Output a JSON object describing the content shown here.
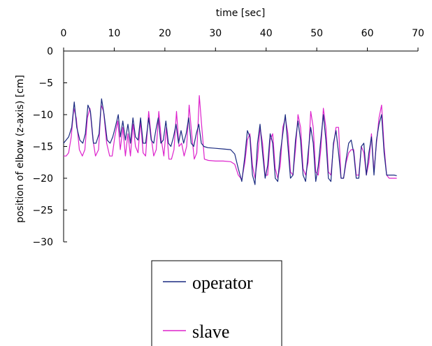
{
  "chart_data": {
    "type": "line",
    "xlabel": "time [sec]",
    "ylabel": "position of elbow (z-axis) [cm]",
    "xlim": [
      0,
      70
    ],
    "ylim": [
      -30,
      0
    ],
    "x_ticks": [
      0,
      10,
      20,
      30,
      40,
      50,
      60,
      70
    ],
    "y_ticks": [
      0,
      -5,
      -10,
      -15,
      -20,
      -25,
      -30
    ],
    "x_axis_position": "top",
    "grid": false,
    "legend": {
      "placement": "bottom-center"
    },
    "series": [
      {
        "name": "operator",
        "color": "#1a2a80",
        "x": [
          0,
          0.5,
          1.0,
          1.6,
          2.1,
          2.6,
          3.2,
          3.8,
          4.3,
          4.8,
          5.3,
          5.9,
          6.4,
          7.0,
          7.5,
          8.0,
          8.6,
          9.2,
          9.7,
          10.2,
          10.8,
          11.2,
          11.7,
          12.2,
          12.7,
          13.2,
          13.7,
          14.2,
          14.7,
          15.2,
          15.7,
          16.2,
          16.8,
          17.3,
          17.8,
          18.2,
          18.7,
          19.2,
          19.7,
          20.2,
          20.7,
          21.2,
          21.7,
          22.2,
          22.7,
          23.2,
          23.7,
          24.2,
          24.7,
          25.2,
          25.7,
          26.2,
          26.7,
          27.2,
          27.7,
          28.5,
          30.0,
          31.5,
          33.0,
          33.8,
          34.5,
          35.2,
          35.8,
          36.3,
          36.8,
          37.3,
          37.8,
          38.3,
          38.8,
          39.3,
          39.8,
          40.3,
          40.8,
          41.3,
          41.8,
          42.3,
          42.8,
          43.3,
          43.8,
          44.3,
          44.8,
          45.3,
          45.8,
          46.3,
          46.8,
          47.3,
          47.8,
          48.3,
          48.8,
          49.3,
          49.8,
          50.3,
          50.8,
          51.3,
          51.8,
          52.3,
          52.8,
          53.3,
          53.8,
          54.3,
          54.8,
          55.3,
          55.8,
          56.3,
          56.8,
          57.3,
          57.8,
          58.3,
          58.8,
          59.3,
          59.8,
          60.3,
          60.8,
          61.3,
          61.8,
          62.3,
          62.8,
          63.3,
          63.8,
          64.3,
          64.8,
          65.3,
          65.8
        ],
        "y": [
          -14.5,
          -14.0,
          -13.5,
          -12.0,
          -8.0,
          -12.0,
          -14.0,
          -14.5,
          -13.0,
          -8.5,
          -9.5,
          -14.5,
          -14.5,
          -13.0,
          -7.5,
          -10.0,
          -14.0,
          -14.5,
          -13.5,
          -12.0,
          -10.0,
          -13.5,
          -11.0,
          -14.0,
          -11.5,
          -14.5,
          -10.5,
          -13.5,
          -14.0,
          -10.5,
          -14.5,
          -14.5,
          -10.5,
          -14.0,
          -14.5,
          -12.5,
          -10.5,
          -14.5,
          -14.0,
          -11.0,
          -14.5,
          -15.0,
          -13.5,
          -11.5,
          -14.5,
          -12.5,
          -14.5,
          -13.0,
          -10.5,
          -14.5,
          -15.0,
          -13.0,
          -11.5,
          -14.5,
          -15.0,
          -15.2,
          -15.3,
          -15.4,
          -15.5,
          -16.2,
          -18.5,
          -20.5,
          -16.5,
          -12.5,
          -13.5,
          -19.5,
          -21.0,
          -14.5,
          -11.5,
          -16.0,
          -20.0,
          -18.0,
          -13.0,
          -14.5,
          -20.0,
          -20.5,
          -16.0,
          -13.0,
          -10.0,
          -15.0,
          -20.0,
          -19.5,
          -14.0,
          -11.0,
          -14.0,
          -19.5,
          -20.5,
          -16.0,
          -12.0,
          -14.5,
          -20.5,
          -18.0,
          -14.0,
          -10.0,
          -14.0,
          -20.0,
          -20.5,
          -14.5,
          -12.5,
          -16.0,
          -20.0,
          -20.0,
          -17.0,
          -14.5,
          -14.0,
          -16.0,
          -20.0,
          -20.0,
          -15.0,
          -14.5,
          -19.5,
          -16.0,
          -13.5,
          -19.5,
          -14.0,
          -11.5,
          -10.0,
          -16.0,
          -19.5,
          -19.5,
          -19.5,
          -19.5,
          -19.6
        ]
      },
      {
        "name": "slave",
        "color": "#dd22cc",
        "x": [
          0,
          0.5,
          1.0,
          1.5,
          2.0,
          2.5,
          3.1,
          3.7,
          4.2,
          4.7,
          5.2,
          5.8,
          6.3,
          6.9,
          7.4,
          7.9,
          8.5,
          9.1,
          9.6,
          10.1,
          10.7,
          11.2,
          11.7,
          12.2,
          12.7,
          13.2,
          13.7,
          14.2,
          14.7,
          15.2,
          15.7,
          16.2,
          16.8,
          17.3,
          17.8,
          18.3,
          18.8,
          19.3,
          19.8,
          20.3,
          20.8,
          21.3,
          21.8,
          22.3,
          22.8,
          23.3,
          23.8,
          24.3,
          24.8,
          25.3,
          25.8,
          26.3,
          26.8,
          27.3,
          27.8,
          28.6,
          30.0,
          31.5,
          33.0,
          33.8,
          34.5,
          35.2,
          35.8,
          36.3,
          36.8,
          37.3,
          37.8,
          38.3,
          38.8,
          39.3,
          39.8,
          40.3,
          40.8,
          41.3,
          41.8,
          42.3,
          42.8,
          43.3,
          43.8,
          44.3,
          44.8,
          45.3,
          45.8,
          46.3,
          46.8,
          47.3,
          47.8,
          48.3,
          48.8,
          49.3,
          49.8,
          50.3,
          50.8,
          51.3,
          51.8,
          52.3,
          52.8,
          53.3,
          53.8,
          54.3,
          54.8,
          55.3,
          55.8,
          56.3,
          56.8,
          57.3,
          57.8,
          58.3,
          58.8,
          59.3,
          59.8,
          60.3,
          60.8,
          61.3,
          61.8,
          62.3,
          62.8,
          63.3,
          63.8,
          64.3,
          64.8,
          65.3,
          65.8
        ],
        "y": [
          -16.5,
          -16.5,
          -16.0,
          -13.5,
          -9.0,
          -10.5,
          -15.5,
          -16.5,
          -15.5,
          -10.5,
          -9.0,
          -14.0,
          -16.5,
          -15.5,
          -8.5,
          -9.5,
          -14.5,
          -16.5,
          -16.5,
          -13.5,
          -11.0,
          -15.5,
          -12.0,
          -16.5,
          -13.0,
          -16.5,
          -11.5,
          -15.0,
          -16.0,
          -11.0,
          -16.0,
          -16.5,
          -9.5,
          -13.5,
          -16.5,
          -15.5,
          -9.5,
          -14.0,
          -16.5,
          -12.0,
          -17.0,
          -17.0,
          -15.5,
          -9.5,
          -15.0,
          -14.5,
          -16.5,
          -15.0,
          -8.5,
          -13.0,
          -17.0,
          -16.0,
          -7.0,
          -12.0,
          -17.0,
          -17.2,
          -17.3,
          -17.3,
          -17.4,
          -17.8,
          -19.5,
          -20.2,
          -17.5,
          -14.0,
          -13.0,
          -18.0,
          -20.0,
          -17.0,
          -12.0,
          -14.5,
          -19.5,
          -19.5,
          -14.0,
          -13.0,
          -18.5,
          -20.0,
          -18.0,
          -12.0,
          -10.5,
          -13.0,
          -19.0,
          -19.5,
          -15.5,
          -10.0,
          -12.0,
          -18.5,
          -19.5,
          -17.5,
          -9.5,
          -12.0,
          -19.0,
          -19.5,
          -15.5,
          -9.0,
          -12.0,
          -19.0,
          -19.5,
          -15.0,
          -12.0,
          -12.0,
          -20.0,
          -20.0,
          -17.5,
          -16.0,
          -15.5,
          -15.5,
          -19.5,
          -19.5,
          -15.0,
          -16.0,
          -19.5,
          -17.5,
          -13.0,
          -19.0,
          -14.5,
          -10.5,
          -8.5,
          -15.0,
          -19.5,
          -20.0,
          -20.0,
          -20.0,
          -20.0
        ]
      }
    ]
  }
}
